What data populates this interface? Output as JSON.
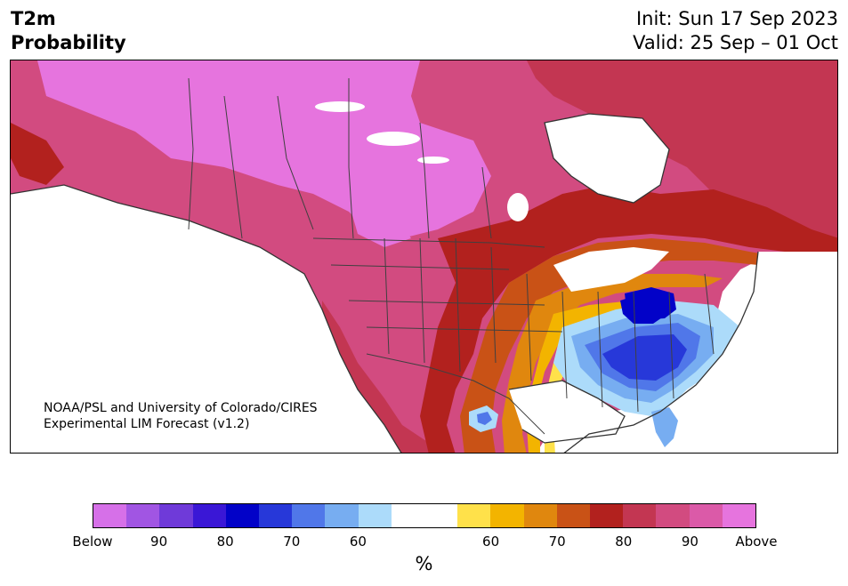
{
  "header": {
    "title_line1": "T2m",
    "title_line2": "Probability",
    "init": "Init: Sun 17 Sep 2023",
    "valid": "Valid: 25 Sep – 01 Oct"
  },
  "credit": {
    "line1": "NOAA/PSL and University of Colorado/CIRES",
    "line2": "Experimental LIM Forecast (v1.2)"
  },
  "colorbar": {
    "colors": [
      "#d670e8",
      "#a155e3",
      "#6f3ad9",
      "#3a17d6",
      "#0202c8",
      "#2738d9",
      "#5077e9",
      "#77adf1",
      "#acdbfa",
      "#ffffff",
      "#ffffff",
      "#ffe14a",
      "#f3b400",
      "#e0870e",
      "#c95216",
      "#b2211e",
      "#c33652",
      "#d24b80",
      "#db5aa8",
      "#e674de"
    ],
    "tick_labels": {
      "below": "Below",
      "b90": "90",
      "b80": "80",
      "b70": "70",
      "b60": "60",
      "a60": "60",
      "a70": "70",
      "a80": "80",
      "a90": "90",
      "above": "Above"
    },
    "unit": "%"
  },
  "map": {
    "region": "North America",
    "land_color": "#ffffff",
    "water_color": "#ffffff",
    "boundary_color": "#404040"
  }
}
